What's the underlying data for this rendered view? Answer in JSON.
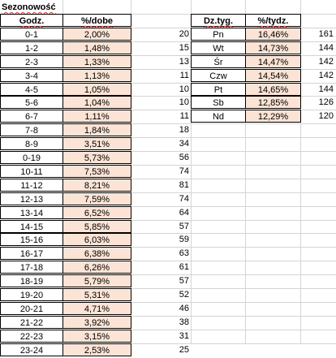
{
  "title": "Sezonowość",
  "hours_table": {
    "header_hour": "Godz.",
    "header_pct": "%/dobe",
    "rows": [
      {
        "hour": "0-1",
        "pct": "2,00%",
        "count": "20"
      },
      {
        "hour": "1-2",
        "pct": "1,48%",
        "count": "15"
      },
      {
        "hour": "2-3",
        "pct": "1,33%",
        "count": "13"
      },
      {
        "hour": "3-4",
        "pct": "1,13%",
        "count": "11"
      },
      {
        "hour": "4-5",
        "pct": "1,05%",
        "count": "10"
      },
      {
        "hour": "5-6",
        "pct": "1,04%",
        "count": "10"
      },
      {
        "hour": "6-7",
        "pct": "1,11%",
        "count": "11"
      },
      {
        "hour": "7-8",
        "pct": "1,84%",
        "count": "18"
      },
      {
        "hour": "8-9",
        "pct": "3,51%",
        "count": "34"
      },
      {
        "hour": "0-19",
        "pct": "5,73%",
        "count": "56"
      },
      {
        "hour": "10-11",
        "pct": "7,53%",
        "count": "74"
      },
      {
        "hour": "11-12",
        "pct": "8,21%",
        "count": "81"
      },
      {
        "hour": "12-13",
        "pct": "7,59%",
        "count": "74"
      },
      {
        "hour": "13-14",
        "pct": "6,52%",
        "count": "64"
      },
      {
        "hour": "14-15",
        "pct": "5,85%",
        "count": "57"
      },
      {
        "hour": "15-16",
        "pct": "6,03%",
        "count": "59"
      },
      {
        "hour": "16-17",
        "pct": "6,38%",
        "count": "63"
      },
      {
        "hour": "17-18",
        "pct": "6,26%",
        "count": "61"
      },
      {
        "hour": "18-19",
        "pct": "5,79%",
        "count": "57"
      },
      {
        "hour": "19-20",
        "pct": "5,31%",
        "count": "52"
      },
      {
        "hour": "20-21",
        "pct": "4,71%",
        "count": "46"
      },
      {
        "hour": "21-22",
        "pct": "3,92%",
        "count": "38"
      },
      {
        "hour": "22-23",
        "pct": "3,15%",
        "count": "31"
      },
      {
        "hour": "23-24",
        "pct": "2,53%",
        "count": "25"
      }
    ]
  },
  "days_table": {
    "header_day": "Dz.tyg.",
    "header_pct": "%/tydz.",
    "rows": [
      {
        "day": "Pn",
        "pct": "16,46%",
        "count": "161"
      },
      {
        "day": "Wt",
        "pct": "14,73%",
        "count": "144"
      },
      {
        "day": "Śr",
        "pct": "14,47%",
        "count": "142"
      },
      {
        "day": "Czw",
        "pct": "14,54%",
        "count": "142"
      },
      {
        "day": "Pt",
        "pct": "14,65%",
        "count": "144"
      },
      {
        "day": "Sb",
        "pct": "12,85%",
        "count": "126"
      },
      {
        "day": "Nd",
        "pct": "12,29%",
        "count": "120"
      }
    ]
  },
  "colors": {
    "pct_fill": "#fbe4d5",
    "gridline": "#d4d4d4",
    "border": "#000000"
  }
}
